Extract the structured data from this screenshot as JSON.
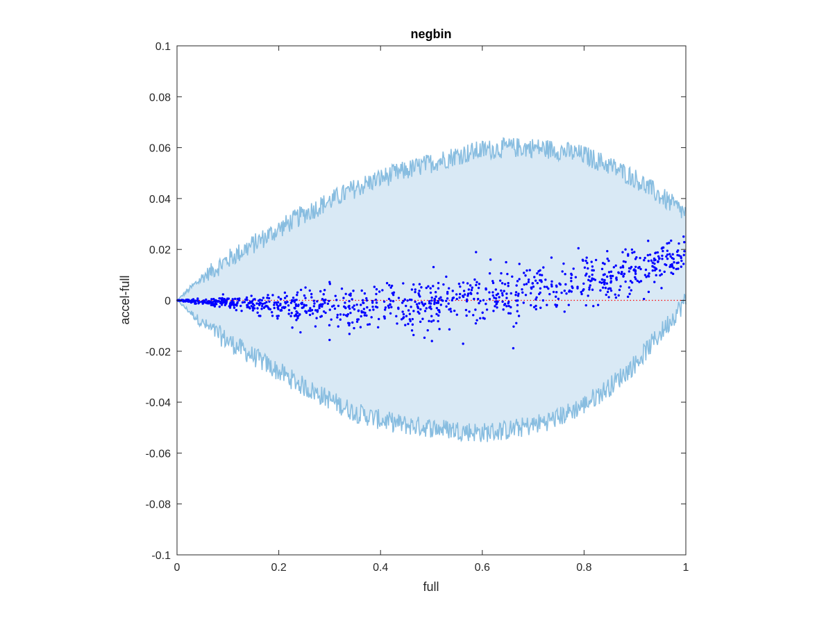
{
  "chart_data": {
    "type": "scatter",
    "title": "negbin",
    "xlabel": "full",
    "ylabel": "accel-full",
    "xlim": [
      0,
      1
    ],
    "ylim": [
      -0.1,
      0.1
    ],
    "xticks": [
      0,
      0.2,
      0.4,
      0.6,
      0.8,
      1
    ],
    "xtick_labels": [
      "0",
      "0.2",
      "0.4",
      "0.6",
      "0.8",
      "1"
    ],
    "yticks": [
      -0.1,
      -0.08,
      -0.06,
      -0.04,
      -0.02,
      0,
      0.02,
      0.04,
      0.06,
      0.08,
      0.1
    ],
    "ytick_labels": [
      "-0.1",
      "-0.08",
      "-0.06",
      "-0.04",
      "-0.02",
      "0",
      "0.02",
      "0.04",
      "0.06",
      "0.08",
      "0.1"
    ],
    "grid": false,
    "series": [
      {
        "kind": "band",
        "fill_color": "#d9e9f5",
        "line_color": "#88bde0",
        "upper_envelope": {
          "x": [
            0,
            0.05,
            0.1,
            0.15,
            0.2,
            0.25,
            0.3,
            0.35,
            0.4,
            0.45,
            0.5,
            0.55,
            0.6,
            0.65,
            0.7,
            0.75,
            0.8,
            0.85,
            0.9,
            0.95,
            1.0
          ],
          "y": [
            0,
            0.009,
            0.016,
            0.022,
            0.028,
            0.034,
            0.039,
            0.044,
            0.048,
            0.051,
            0.054,
            0.057,
            0.059,
            0.06,
            0.06,
            0.059,
            0.057,
            0.053,
            0.048,
            0.041,
            0.034
          ]
        },
        "lower_envelope": {
          "x": [
            0,
            0.05,
            0.1,
            0.15,
            0.2,
            0.25,
            0.3,
            0.35,
            0.4,
            0.45,
            0.5,
            0.55,
            0.6,
            0.65,
            0.7,
            0.75,
            0.8,
            0.85,
            0.9,
            0.95,
            1.0
          ],
          "y": [
            0,
            -0.009,
            -0.016,
            -0.022,
            -0.028,
            -0.034,
            -0.039,
            -0.044,
            -0.047,
            -0.049,
            -0.05,
            -0.051,
            -0.052,
            -0.051,
            -0.049,
            -0.046,
            -0.041,
            -0.034,
            -0.025,
            -0.013,
            0
          ]
        },
        "noise_amplitude": 0.004
      },
      {
        "kind": "points",
        "color": "#0000ff",
        "trend": {
          "x": [
            0,
            0.1,
            0.2,
            0.3,
            0.4,
            0.5,
            0.6,
            0.7,
            0.8,
            0.9,
            1.0
          ],
          "y": [
            0,
            -0.001,
            -0.002,
            -0.003,
            -0.002,
            -0.001,
            0.001,
            0.004,
            0.008,
            0.012,
            0.018
          ]
        },
        "spread": {
          "x": [
            0,
            0.1,
            0.2,
            0.3,
            0.4,
            0.5,
            0.6,
            0.7,
            0.8,
            0.9,
            1.0
          ],
          "y": [
            0,
            0.0012,
            0.0025,
            0.004,
            0.0045,
            0.005,
            0.0052,
            0.0055,
            0.005,
            0.0045,
            0.003
          ]
        },
        "count": 1000
      },
      {
        "kind": "reference-line",
        "color": "#ff0000",
        "style": "dotted",
        "x": [
          0,
          1
        ],
        "y": [
          0,
          0
        ]
      }
    ]
  }
}
